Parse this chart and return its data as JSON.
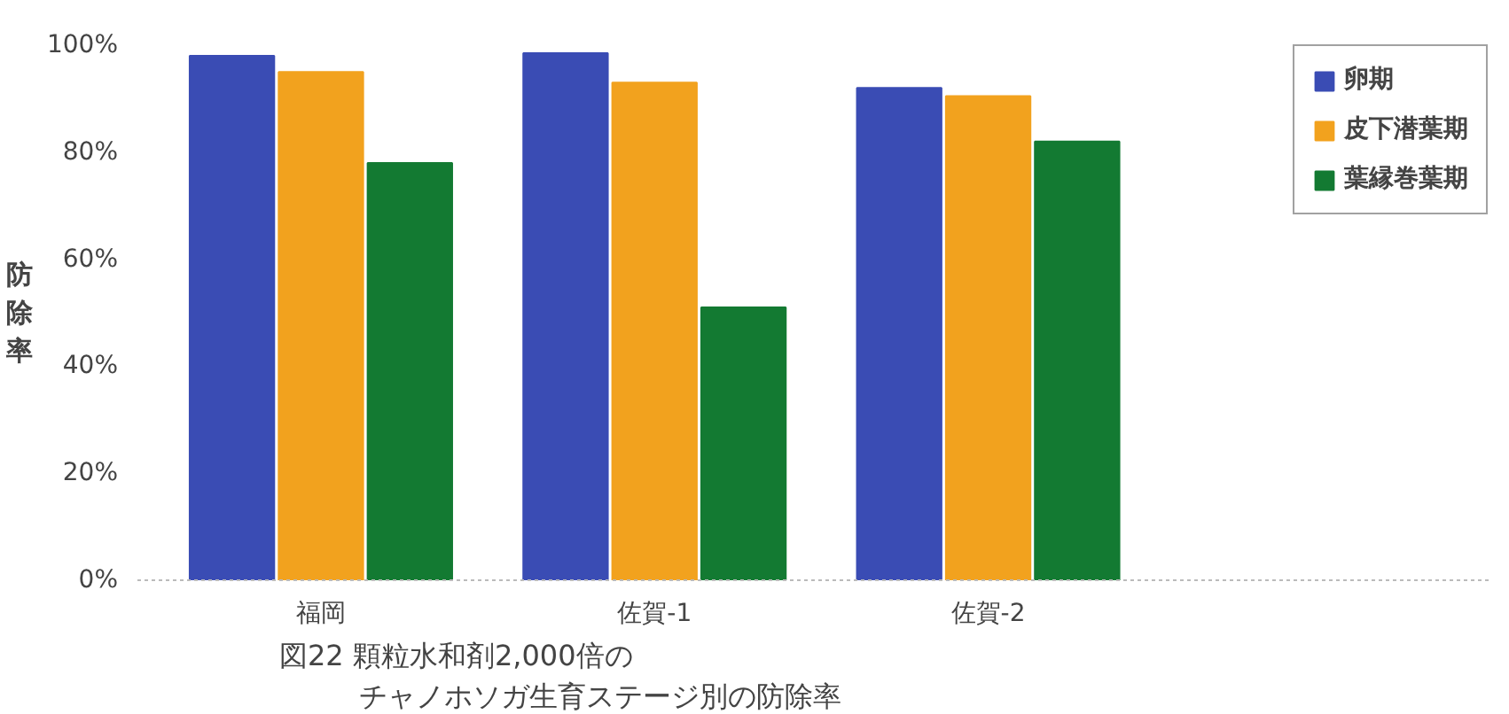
{
  "chart_data": {
    "type": "bar",
    "title": "図22 顆粒水和剤2,000倍の",
    "subtitle": "チャノホソガ生育ステージ別の防除率",
    "ylabel": "防除率",
    "categories": [
      "福岡",
      "佐賀-1",
      "佐賀-2"
    ],
    "series": [
      {
        "name": "卵期",
        "color": "#3a4cb4",
        "values": [
          98,
          98.5,
          92
        ]
      },
      {
        "name": "皮下潜葉期",
        "color": "#f2a21e",
        "values": [
          95,
          93,
          90.5
        ]
      },
      {
        "name": "葉縁巻葉期",
        "color": "#137a32",
        "values": [
          78,
          51,
          82
        ]
      }
    ],
    "ylim": [
      0,
      100
    ],
    "yticks": [
      {
        "value": 0,
        "label": "0%"
      },
      {
        "value": 20,
        "label": "20%"
      },
      {
        "value": 40,
        "label": "40%"
      },
      {
        "value": 60,
        "label": "60%"
      },
      {
        "value": 80,
        "label": "80%"
      },
      {
        "value": 100,
        "label": "100%"
      }
    ],
    "grid": false,
    "legend": "top right"
  }
}
